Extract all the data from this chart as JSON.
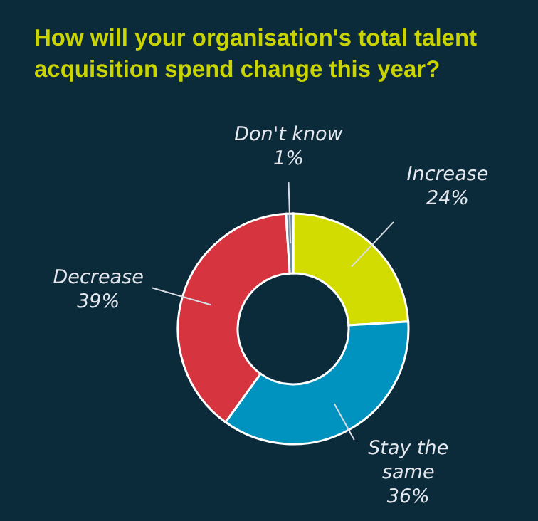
{
  "chart_data": {
    "type": "donut",
    "title": "How will your organisation's total talent acquisition spend change this year?",
    "categories": [
      "Increase",
      "Stay the same",
      "Decrease",
      "Don't know"
    ],
    "values": [
      24,
      36,
      39,
      1
    ],
    "value_labels": [
      "24%",
      "36%",
      "39%",
      "1%"
    ],
    "colors": [
      "#d2dc00",
      "#0093bf",
      "#d6343e",
      "#6b8aa6"
    ],
    "legend": false
  }
}
